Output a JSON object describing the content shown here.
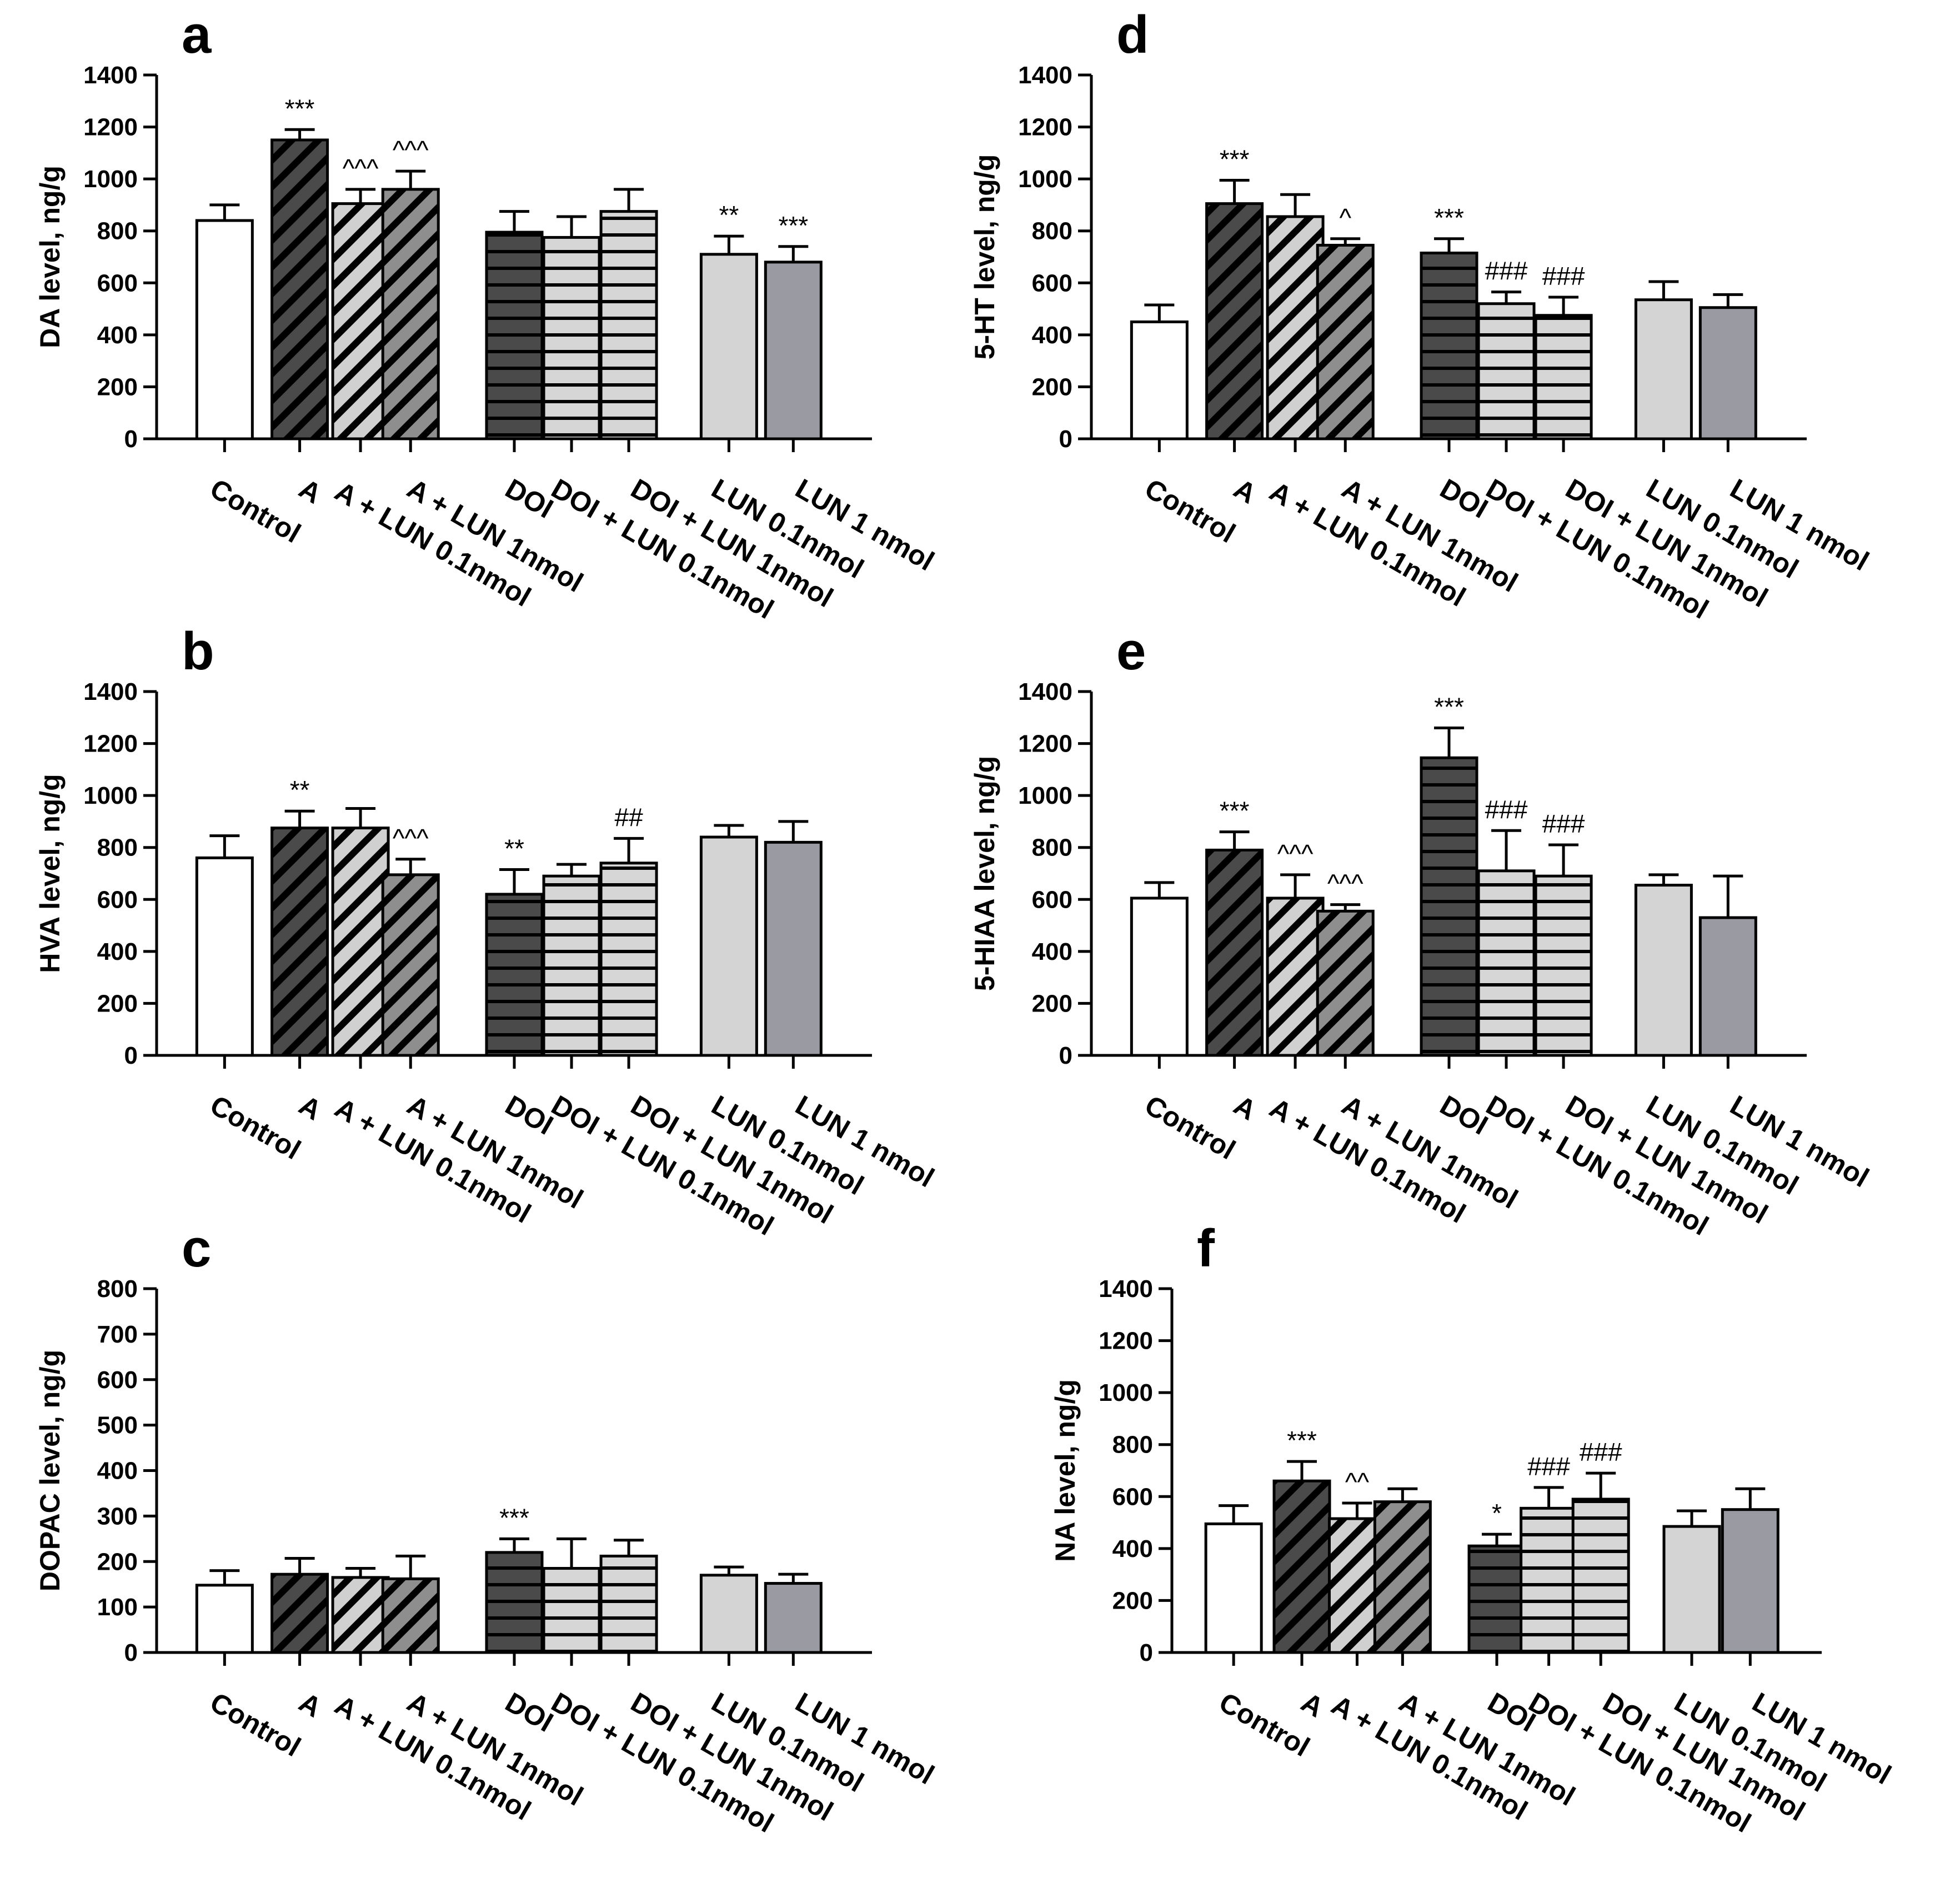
{
  "chart_data": [
    {
      "panel": "a",
      "type": "bar",
      "ylabel": "DA level, ng/g",
      "ylim": [
        0,
        1400
      ],
      "yticks": [
        0,
        200,
        400,
        600,
        800,
        1000,
        1200,
        1400
      ],
      "categories": [
        "Control",
        "A",
        "A + LUN 0.1nmol",
        "A + LUN 1nmol",
        "DOI",
        "DOI + LUN 0.1nmol",
        "DOI + LUN 1nmol",
        "LUN 0.1nmol",
        "LUN 1 nmol"
      ],
      "values": [
        840,
        1150,
        905,
        960,
        795,
        775,
        875,
        710,
        680
      ],
      "errors": [
        60,
        40,
        55,
        70,
        80,
        80,
        85,
        70,
        60
      ],
      "annotations": [
        "",
        "***",
        "^^^",
        "^^^",
        "",
        "",
        "",
        "**",
        "***"
      ]
    },
    {
      "panel": "b",
      "type": "bar",
      "ylabel": "HVA level, ng/g",
      "ylim": [
        0,
        1400
      ],
      "yticks": [
        0,
        200,
        400,
        600,
        800,
        1000,
        1200,
        1400
      ],
      "categories": [
        "Control",
        "A",
        "A + LUN 0.1nmol",
        "A + LUN 1nmol",
        "DOI",
        "DOI + LUN 0.1nmol",
        "DOI + LUN 1nmol",
        "LUN 0.1nmol",
        "LUN 1 nmol"
      ],
      "values": [
        760,
        875,
        875,
        695,
        620,
        690,
        740,
        840,
        820
      ],
      "errors": [
        85,
        65,
        75,
        60,
        95,
        45,
        95,
        45,
        80
      ],
      "annotations": [
        "",
        "**",
        "",
        "^^^",
        "**",
        "",
        "##",
        "",
        ""
      ]
    },
    {
      "panel": "c",
      "type": "bar",
      "ylabel": "DOPAC level, ng/g",
      "ylim": [
        0,
        800
      ],
      "yticks": [
        0,
        100,
        200,
        300,
        400,
        500,
        600,
        700,
        800
      ],
      "categories": [
        "Control",
        "A",
        "A + LUN 0.1nmol",
        "A + LUN 1nmol",
        "DOI",
        "DOI + LUN 0.1nmol",
        "DOI + LUN 1nmol",
        "LUN 0.1nmol",
        "LUN 1 nmol"
      ],
      "values": [
        148,
        172,
        165,
        162,
        220,
        185,
        212,
        170,
        152
      ],
      "errors": [
        32,
        35,
        20,
        50,
        30,
        65,
        35,
        18,
        20
      ],
      "annotations": [
        "",
        "",
        "",
        "",
        "***",
        "",
        "",
        "",
        ""
      ]
    },
    {
      "panel": "d",
      "type": "bar",
      "ylabel": "5-HT level, ng/g",
      "ylim": [
        0,
        1400
      ],
      "yticks": [
        0,
        200,
        400,
        600,
        800,
        1000,
        1200,
        1400
      ],
      "categories": [
        "Control",
        "A",
        "A + LUN 0.1nmol",
        "A + LUN 1nmol",
        "DOI",
        "DOI + LUN 0.1nmol",
        "DOI + LUN 1nmol",
        "LUN 0.1nmol",
        "LUN 1 nmol"
      ],
      "values": [
        450,
        905,
        855,
        745,
        715,
        520,
        475,
        535,
        505
      ],
      "errors": [
        65,
        90,
        85,
        25,
        55,
        45,
        70,
        70,
        50
      ],
      "annotations": [
        "",
        "***",
        "",
        "^",
        "***",
        "###",
        "###",
        "",
        ""
      ]
    },
    {
      "panel": "e",
      "type": "bar",
      "ylabel": "5-HIAA level, ng/g",
      "ylim": [
        0,
        1400
      ],
      "yticks": [
        0,
        200,
        400,
        600,
        800,
        1000,
        1200,
        1400
      ],
      "categories": [
        "Control",
        "A",
        "A + LUN 0.1nmol",
        "A + LUN 1nmol",
        "DOI",
        "DOI + LUN 0.1nmol",
        "DOI + LUN 1nmol",
        "LUN 0.1nmol",
        "LUN 1 nmol"
      ],
      "values": [
        605,
        790,
        605,
        555,
        1145,
        710,
        690,
        655,
        530
      ],
      "errors": [
        60,
        70,
        90,
        25,
        115,
        155,
        120,
        40,
        160
      ],
      "annotations": [
        "",
        "***",
        "^^^",
        "^^^",
        "***",
        "###",
        "###",
        "",
        ""
      ]
    },
    {
      "panel": "f",
      "type": "bar",
      "ylabel": "NA level, ng/g",
      "ylim": [
        0,
        1400
      ],
      "yticks": [
        0,
        200,
        400,
        600,
        800,
        1000,
        1200,
        1400
      ],
      "categories": [
        "Control",
        "A",
        "A + LUN 0.1nmol",
        "A + LUN 1nmol",
        "DOI",
        "DOI + LUN 0.1nmol",
        "DOI + LUN 1nmol",
        "LUN 0.1nmol",
        "LUN 1 nmol"
      ],
      "values": [
        495,
        660,
        515,
        580,
        410,
        555,
        590,
        485,
        550
      ],
      "errors": [
        70,
        75,
        60,
        50,
        45,
        80,
        100,
        60,
        80
      ],
      "annotations": [
        "",
        "***",
        "^^",
        "",
        "*",
        "###",
        "###",
        "",
        ""
      ]
    }
  ],
  "bar_styles": [
    {
      "fill": "#ffffff",
      "pattern": "none"
    },
    {
      "fill": "#4a4a4a",
      "pattern": "diag"
    },
    {
      "fill": "#d0d0d0",
      "pattern": "diag"
    },
    {
      "fill": "#8e8e8e",
      "pattern": "diag"
    },
    {
      "fill": "#4a4a4a",
      "pattern": "horiz"
    },
    {
      "fill": "#d6d6d6",
      "pattern": "horiz"
    },
    {
      "fill": "#d6d6d6",
      "pattern": "horiz"
    },
    {
      "fill": "#d4d4d4",
      "pattern": "none"
    },
    {
      "fill": "#9a9aa2",
      "pattern": "none"
    }
  ],
  "colors": {
    "axis": "#000000",
    "stripe": "#000000"
  }
}
